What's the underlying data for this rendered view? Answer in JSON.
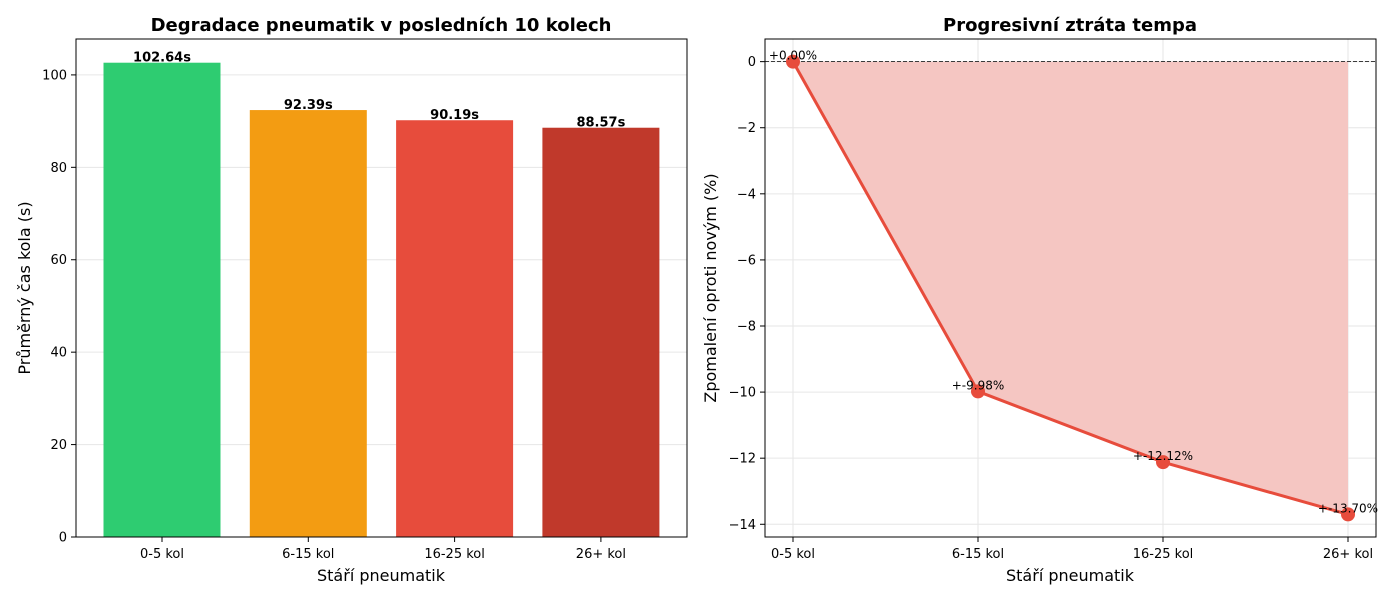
{
  "chart_data": [
    {
      "type": "bar",
      "title": "Degradace pneumatik v posledních 10 kolech",
      "xlabel": "Stáří pneumatik",
      "ylabel": "Průměrný čas kola (s)",
      "categories": [
        "0-5 kol",
        "6-15 kol",
        "16-25 kol",
        "26+ kol"
      ],
      "values": [
        102.64,
        92.39,
        90.19,
        88.57
      ],
      "value_labels": [
        "102.64s",
        "92.39s",
        "90.19s",
        "88.57s"
      ],
      "colors": [
        "#2ecc71",
        "#f39c12",
        "#e74c3c",
        "#c0392b"
      ],
      "ylim": [
        0,
        107.77
      ],
      "yticks": [
        0,
        20,
        40,
        60,
        80,
        100
      ],
      "grid": true
    },
    {
      "type": "line",
      "title": "Progresivní ztráta tempa",
      "xlabel": "Stáří pneumatik",
      "ylabel": "Zpomalení oproti novým (%)",
      "categories": [
        "0-5 kol",
        "6-15 kol",
        "16-25 kol",
        "26+ kol"
      ],
      "values": [
        0.0,
        -9.98,
        -12.12,
        -13.7
      ],
      "point_labels": [
        "+0.00%",
        "+-9.98%",
        "+-12.12%",
        "+-13.70%"
      ],
      "color": "#e74c3c",
      "fill_color": "#f5c6c2",
      "ylim": [
        -14.385,
        0.685
      ],
      "yticks": [
        0,
        -2,
        -4,
        -6,
        -8,
        -10,
        -12,
        -14
      ],
      "ytick_labels": [
        "0",
        "−2",
        "−4",
        "−6",
        "−8",
        "−10",
        "−12",
        "−14"
      ],
      "reference_line": 0,
      "grid": true
    }
  ]
}
